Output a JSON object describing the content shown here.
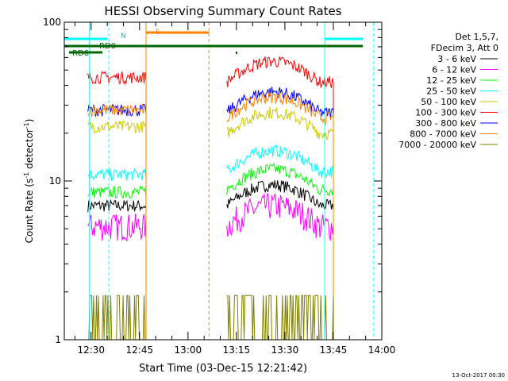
{
  "chart_data": {
    "type": "line",
    "title": "HESSI Observing Summary Count Rates",
    "xlabel": "Start Time (03-Dec-15 12:21:42)",
    "ylabel_main": "Count Rate (s",
    "ylabel_sup1": "-1",
    "ylabel_mid": " detector",
    "ylabel_sup2": "-1",
    "ylabel_end": ")",
    "yscale": "log",
    "ylim": [
      1,
      100
    ],
    "xlim": [
      "12:21:42",
      "14:00:00"
    ],
    "xticks": [
      "12:30",
      "12:45",
      "13:00",
      "13:15",
      "13:30",
      "13:45",
      "14:00"
    ],
    "yticks": [
      "1",
      "10",
      "100"
    ],
    "legend_header": [
      "Det 1,5,7,",
      "FDecim 3, Att 0"
    ],
    "footer_date": "13-Oct-2017 00:30",
    "flags": {
      "N": "N",
      "S": "S",
      "RD0": "RD0",
      "RD6": "RD6"
    },
    "segments": [
      [
        "12:29",
        "12:47"
      ],
      [
        "13:12",
        "13:45"
      ]
    ],
    "series": [
      {
        "name": "3 - 6 keV",
        "color": "#000000",
        "values": [
          7.0,
          7.0
        ]
      },
      {
        "name": "6 - 12 keV",
        "color": "#ff00ff",
        "values": [
          5.2,
          5.2
        ]
      },
      {
        "name": "12 - 25 keV",
        "color": "#00ff00",
        "values": [
          8.5,
          8.8
        ]
      },
      {
        "name": "25 - 50 keV",
        "color": "#00ffff",
        "values": [
          11.0,
          11.5
        ]
      },
      {
        "name": "50 - 100 keV",
        "color": "#cccc00",
        "values": [
          22.0,
          20.0
        ]
      },
      {
        "name": "100 - 300 keV",
        "color": "#ff0000",
        "values": [
          45.0,
          42.0
        ]
      },
      {
        "name": "300 - 800 keV",
        "color": "#0000ff",
        "values": [
          28.0,
          27.0
        ]
      },
      {
        "name": "800 - 7000 keV",
        "color": "#ff8000",
        "values": [
          28.0,
          25.0
        ]
      },
      {
        "name": "7000 - 20000 keV",
        "color": "#808000",
        "values": [
          1.7,
          1.7
        ]
      }
    ]
  }
}
